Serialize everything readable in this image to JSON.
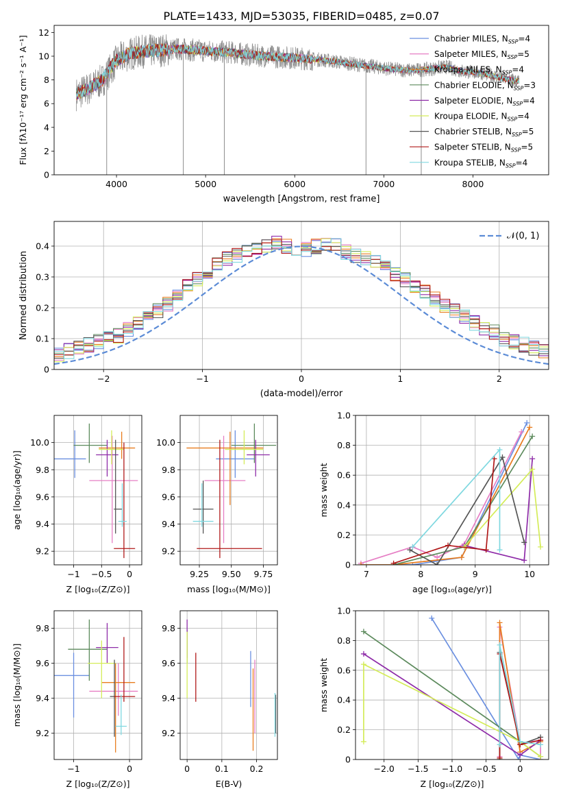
{
  "figure_title": "PLATE=1433, MJD=53035, FIBERID=0485, z=0.07",
  "colors": {
    "chabrier_miles": "#6a8fe0",
    "salpeter_miles": "#e67ec4",
    "kroupa_miles": "#e87c1e",
    "chabrier_elodie": "#5c8a5c",
    "salpeter_elodie": "#8e2ba8",
    "kroupa_elodie": "#d4ec58",
    "chabrier_stelib": "#555555",
    "salpeter_stelib": "#b01818",
    "kroupa_stelib": "#7fd8e0",
    "data": "#8c8c8c",
    "normal": "#5b8bd6"
  },
  "labels": {
    "spec_xlabel": "wavelength [Angstrom, rest frame]",
    "spec_ylabel": "Flux [fλ10⁻¹⁷ erg cm⁻² s⁻¹ A⁻¹]",
    "hist_xlabel": "(data-model)/error",
    "hist_ylabel": "Normed distribution",
    "hist_legend": "𝒩(0, 1)",
    "z_label": "Z [log₁₀(Z/Z⊙)]",
    "mass_label": "mass [log₁₀(M/M⊙)]",
    "age_label": "age  [log₁₀(age/yr)]",
    "mw_label": "mass weight",
    "ebv_label": "E(B-V)"
  },
  "legend": [
    {
      "key": "chabrier_miles",
      "text": "Chabrier MILES, N_SSP=4"
    },
    {
      "key": "salpeter_miles",
      "text": "Salpeter MILES, N_SSP=5"
    },
    {
      "key": "kroupa_miles",
      "text": "Kroupa MILES, N_SSP=4"
    },
    {
      "key": "chabrier_elodie",
      "text": "Chabrier ELODIE, N_SSP=3"
    },
    {
      "key": "salpeter_elodie",
      "text": "Salpeter ELODIE, N_SSP=4"
    },
    {
      "key": "kroupa_elodie",
      "text": "Kroupa ELODIE, N_SSP=4"
    },
    {
      "key": "chabrier_stelib",
      "text": "Chabrier STELIB, N_SSP=5"
    },
    {
      "key": "salpeter_stelib",
      "text": "Salpeter STELIB, N_SSP=5"
    },
    {
      "key": "kroupa_stelib",
      "text": "Kroupa STELIB, N_SSP=4"
    }
  ],
  "chart_data": [
    {
      "id": "spectrum",
      "type": "line",
      "title": "PLATE=1433, MJD=53035, FIBERID=0485, z=0.07",
      "xlabel": "wavelength [Angstrom, rest frame]",
      "xlim": [
        3300,
        8850
      ],
      "ylim": [
        0,
        12.6
      ],
      "xticks": [
        4000,
        5000,
        6000,
        7000,
        8000
      ],
      "yticks": [
        0,
        2,
        4,
        6,
        8,
        10,
        12
      ],
      "data_continuum": {
        "x": [
          3550,
          3700,
          3850,
          4000,
          4150,
          4300,
          4500,
          4700,
          4900,
          5100,
          5300,
          5500,
          5700,
          5900,
          6100,
          6300,
          6500,
          6700,
          6900,
          7100,
          7300,
          7500,
          7700,
          7900,
          8100,
          8300,
          8500
        ],
        "y": [
          6.8,
          7.3,
          8.0,
          9.6,
          10.2,
          10.4,
          10.5,
          10.6,
          10.5,
          10.4,
          10.3,
          10.1,
          10.0,
          9.9,
          9.8,
          9.7,
          9.5,
          9.3,
          9.1,
          8.9,
          8.8,
          8.9,
          9.1,
          8.7,
          8.6,
          8.2,
          7.9
        ]
      },
      "absorption_features": [
        {
          "x": 4750,
          "y": 0
        },
        {
          "x": 5210,
          "y": 0
        },
        {
          "x": 6800,
          "y": 0
        },
        {
          "x": 7420,
          "y": 0
        },
        {
          "x": 3890,
          "y": 0
        }
      ]
    },
    {
      "id": "residuals",
      "type": "bar",
      "xlabel": "(data-model)/error",
      "ylabel": "Normed distribution",
      "xlim": [
        -2.5,
        2.5
      ],
      "ylim": [
        0,
        0.48
      ],
      "xticks": [
        -2,
        -1,
        0,
        1,
        2
      ],
      "yticks": [
        0.0,
        0.1,
        0.2,
        0.3,
        0.4
      ],
      "bin_width": 0.1,
      "bin_values": [
        0.02,
        0.03,
        0.04,
        0.04,
        0.05,
        0.05,
        0.06,
        0.07,
        0.08,
        0.09,
        0.1,
        0.11,
        0.13,
        0.15,
        0.17,
        0.19,
        0.21,
        0.24,
        0.27,
        0.29,
        0.31,
        0.34,
        0.36,
        0.37,
        0.38,
        0.39,
        0.4,
        0.41,
        0.4,
        0.39,
        0.39,
        0.4,
        0.41,
        0.4,
        0.38,
        0.37,
        0.36,
        0.35,
        0.33,
        0.31,
        0.29,
        0.27,
        0.25,
        0.23,
        0.21,
        0.19,
        0.17,
        0.15,
        0.13,
        0.12,
        0.1,
        0.09,
        0.08,
        0.07,
        0.06,
        0.05,
        0.05,
        0.04,
        0.03,
        0.03
      ],
      "legend": [
        "𝒩(0, 1)"
      ]
    },
    {
      "id": "z_age",
      "type": "scatter",
      "xlim": [
        -1.35,
        0.22
      ],
      "ylim": [
        9.1,
        10.2
      ],
      "xticks": [
        -1,
        -0.5,
        0
      ],
      "yticks": [
        9.2,
        9.4,
        9.6,
        9.8,
        10.0
      ],
      "points": [
        {
          "key": "chabrier_miles",
          "x": -0.98,
          "y": 9.88,
          "xlo": -1.35,
          "xhi": -0.78,
          "ylo": 9.74,
          "yhi": 10.09
        },
        {
          "key": "salpeter_miles",
          "x": -0.31,
          "y": 9.72,
          "xlo": -0.72,
          "xhi": 0.15,
          "ylo": 9.26,
          "yhi": 10.05
        },
        {
          "key": "kroupa_miles",
          "x": -0.14,
          "y": 9.96,
          "xlo": -0.55,
          "xhi": 0.1,
          "ylo": 9.88,
          "yhi": 10.08
        },
        {
          "key": "chabrier_elodie",
          "x": -0.72,
          "y": 9.98,
          "xlo": -1.0,
          "xhi": -0.4,
          "ylo": 9.85,
          "yhi": 10.14
        },
        {
          "key": "salpeter_elodie",
          "x": -0.4,
          "y": 9.91,
          "xlo": -0.6,
          "xhi": -0.2,
          "ylo": 9.75,
          "yhi": 10.02
        },
        {
          "key": "kroupa_elodie",
          "x": -0.32,
          "y": 9.95,
          "xlo": -0.55,
          "xhi": -0.1,
          "ylo": 9.84,
          "yhi": 10.09
        },
        {
          "key": "chabrier_stelib",
          "x": -0.25,
          "y": 9.51,
          "xlo": -0.28,
          "xhi": -0.13,
          "ylo": 9.33,
          "yhi": 10.02
        },
        {
          "key": "salpeter_stelib",
          "x": -0.1,
          "y": 9.22,
          "xlo": -0.28,
          "xhi": 0.1,
          "ylo": 9.15,
          "yhi": 10.0
        },
        {
          "key": "kroupa_stelib",
          "x": -0.13,
          "y": 9.42,
          "xlo": -0.2,
          "xhi": -0.05,
          "ylo": 9.38,
          "yhi": 9.7
        }
      ]
    },
    {
      "id": "mass_age",
      "type": "scatter",
      "xlim": [
        9.1,
        9.86
      ],
      "ylim": [
        9.1,
        10.2
      ],
      "xticks": [
        9.25,
        9.5,
        9.75
      ],
      "yticks": [
        9.2,
        9.4,
        9.6,
        9.8,
        10.0
      ],
      "points": [
        {
          "key": "chabrier_miles",
          "x": 9.53,
          "y": 9.88,
          "xlo": 9.38,
          "xhi": 9.68,
          "ylo": 9.74,
          "yhi": 10.09
        },
        {
          "key": "salpeter_miles",
          "x": 9.44,
          "y": 9.72,
          "xlo": 9.29,
          "xhi": 9.61,
          "ylo": 9.26,
          "yhi": 10.05
        },
        {
          "key": "kroupa_miles",
          "x": 9.49,
          "y": 9.96,
          "xlo": 9.15,
          "xhi": 9.75,
          "ylo": 9.54,
          "yhi": 10.08
        },
        {
          "key": "chabrier_elodie",
          "x": 9.68,
          "y": 9.98,
          "xlo": 9.5,
          "xhi": 9.85,
          "ylo": 9.85,
          "yhi": 10.14
        },
        {
          "key": "salpeter_elodie",
          "x": 9.69,
          "y": 9.91,
          "xlo": 9.62,
          "xhi": 9.8,
          "ylo": 9.75,
          "yhi": 10.02
        },
        {
          "key": "kroupa_elodie",
          "x": 9.6,
          "y": 9.95,
          "xlo": 9.45,
          "xhi": 9.75,
          "ylo": 9.84,
          "yhi": 10.09
        },
        {
          "key": "chabrier_stelib",
          "x": 9.28,
          "y": 9.51,
          "xlo": 9.2,
          "xhi": 9.36,
          "ylo": 9.33,
          "yhi": 9.72
        },
        {
          "key": "salpeter_stelib",
          "x": 9.41,
          "y": 9.22,
          "xlo": 9.23,
          "xhi": 9.74,
          "ylo": 9.15,
          "yhi": 10.02
        },
        {
          "key": "kroupa_stelib",
          "x": 9.27,
          "y": 9.42,
          "xlo": 9.2,
          "xhi": 9.36,
          "ylo": 9.38,
          "yhi": 9.7
        }
      ]
    },
    {
      "id": "z_mass",
      "type": "scatter",
      "xlim": [
        -1.35,
        0.22
      ],
      "ylim": [
        9.05,
        9.9
      ],
      "xticks": [
        -1,
        0
      ],
      "yticks": [
        9.2,
        9.4,
        9.6,
        9.8
      ],
      "points": [
        {
          "key": "chabrier_miles",
          "x": -1.0,
          "y": 9.53,
          "xlo": -1.35,
          "xhi": -0.72,
          "ylo": 9.29,
          "yhi": 9.66
        },
        {
          "key": "salpeter_miles",
          "x": -0.2,
          "y": 9.44,
          "xlo": -0.72,
          "xhi": 0.15,
          "ylo": 9.3,
          "yhi": 9.6
        },
        {
          "key": "kroupa_miles",
          "x": -0.25,
          "y": 9.49,
          "xlo": -0.5,
          "xhi": 0.1,
          "ylo": 9.09,
          "yhi": 9.6
        },
        {
          "key": "chabrier_elodie",
          "x": -0.72,
          "y": 9.68,
          "xlo": -1.1,
          "xhi": -0.4,
          "ylo": 9.5,
          "yhi": 9.85
        },
        {
          "key": "salpeter_elodie",
          "x": -0.4,
          "y": 9.69,
          "xlo": -0.6,
          "xhi": -0.2,
          "ylo": 9.6,
          "yhi": 9.83
        },
        {
          "key": "kroupa_elodie",
          "x": -0.5,
          "y": 9.6,
          "xlo": -0.75,
          "xhi": -0.25,
          "ylo": 9.4,
          "yhi": 9.73
        },
        {
          "key": "chabrier_stelib",
          "x": -0.27,
          "y": 9.41,
          "xlo": -0.35,
          "xhi": -0.25,
          "ylo": 9.18,
          "yhi": 9.62
        },
        {
          "key": "salpeter_stelib",
          "x": -0.1,
          "y": 9.41,
          "xlo": -0.28,
          "xhi": 0.1,
          "ylo": 9.38,
          "yhi": 9.75
        },
        {
          "key": "kroupa_stelib",
          "x": -0.15,
          "y": 9.24,
          "xlo": -0.25,
          "xhi": -0.05,
          "ylo": 9.19,
          "yhi": 9.42
        }
      ]
    },
    {
      "id": "ebv_mass",
      "type": "scatter",
      "xlim": [
        -0.02,
        0.26
      ],
      "ylim": [
        9.05,
        9.9
      ],
      "xticks": [
        0.0,
        0.1,
        0.2
      ],
      "yticks": [
        9.2,
        9.4,
        9.6,
        9.8
      ],
      "points": [
        {
          "key": "chabrier_miles",
          "x": 0.183,
          "y": 9.53,
          "ylo": 9.35,
          "yhi": 9.67
        },
        {
          "key": "salpeter_miles",
          "x": 0.195,
          "y": 9.44,
          "ylo": 9.2,
          "yhi": 9.62
        },
        {
          "key": "kroupa_miles",
          "x": 0.19,
          "y": 9.49,
          "ylo": 9.1,
          "yhi": 9.57
        },
        {
          "key": "chabrier_elodie",
          "x": 0.0,
          "y": 9.68,
          "ylo": 9.6,
          "yhi": 9.79
        },
        {
          "key": "salpeter_elodie",
          "x": 0.0,
          "y": 9.69,
          "ylo": 9.63,
          "yhi": 9.85
        },
        {
          "key": "kroupa_elodie",
          "x": 0.0,
          "y": 9.6,
          "ylo": 9.4,
          "yhi": 9.78
        },
        {
          "key": "chabrier_stelib",
          "x": 0.255,
          "y": 9.3,
          "ylo": 9.2,
          "yhi": 9.42
        },
        {
          "key": "salpeter_stelib",
          "x": 0.025,
          "y": 9.5,
          "ylo": 9.38,
          "yhi": 9.66
        },
        {
          "key": "kroupa_stelib",
          "x": 0.253,
          "y": 9.3,
          "ylo": 9.18,
          "yhi": 9.43
        }
      ]
    },
    {
      "id": "age_weight",
      "type": "line",
      "xlim": [
        6.8,
        10.35
      ],
      "ylim": [
        0,
        1
      ],
      "xticks": [
        7,
        8,
        9,
        10
      ],
      "yticks": [
        0.0,
        0.2,
        0.4,
        0.6,
        0.8,
        1.0
      ],
      "series": [
        {
          "key": "chabrier_miles",
          "x": [
            7.5,
            7.85,
            8.75,
            9.95
          ],
          "y": [
            0.0,
            0.0,
            0.05,
            0.95
          ]
        },
        {
          "key": "salpeter_miles",
          "x": [
            6.9,
            7.85,
            8.3,
            8.8,
            9.85
          ],
          "y": [
            0.01,
            0.12,
            0.05,
            0.14,
            0.89
          ]
        },
        {
          "key": "kroupa_miles",
          "x": [
            6.9,
            7.5,
            8.75,
            10.0
          ],
          "y": [
            0.0,
            0.0,
            0.05,
            0.92
          ]
        },
        {
          "key": "chabrier_elodie",
          "x": [
            7.5,
            8.8,
            10.05
          ],
          "y": [
            0.0,
            0.12,
            0.86
          ]
        },
        {
          "key": "salpeter_elodie",
          "x": [
            8.8,
            9.9,
            10.05
          ],
          "y": [
            0.13,
            0.03,
            0.71
          ]
        },
        {
          "key": "kroupa_elodie",
          "x": [
            8.8,
            10.05,
            10.2
          ],
          "y": [
            0.12,
            0.64,
            0.12
          ]
        },
        {
          "key": "chabrier_stelib",
          "x": [
            7.8,
            8.3,
            9.5,
            9.9
          ],
          "y": [
            0.1,
            0.0,
            0.72,
            0.15
          ]
        },
        {
          "key": "salpeter_stelib",
          "x": [
            7.5,
            8.5,
            9.2,
            9.35
          ],
          "y": [
            0.01,
            0.13,
            0.1,
            0.71
          ]
        },
        {
          "key": "kroupa_stelib",
          "x": [
            7.85,
            9.45,
            9.45
          ],
          "y": [
            0.12,
            0.77,
            0.1
          ]
        }
      ]
    },
    {
      "id": "z_weight",
      "type": "line",
      "xlim": [
        -2.42,
        0.42
      ],
      "ylim": [
        0,
        1
      ],
      "xticks": [
        -2.0,
        -1.5,
        -1.0,
        -0.5,
        0.0
      ],
      "yticks": [
        0.0,
        0.2,
        0.4,
        0.6,
        0.8,
        1.0
      ],
      "series": [
        {
          "key": "chabrier_miles",
          "x": [
            -1.3,
            -0.02,
            0.0,
            0.3
          ],
          "y": [
            0.95,
            0.0,
            0.03,
            0.0
          ]
        },
        {
          "key": "salpeter_miles",
          "x": [
            -0.3,
            -0.3,
            0.0,
            0.3,
            0.3
          ],
          "y": [
            0.02,
            0.89,
            0.11,
            0.13,
            0.0
          ]
        },
        {
          "key": "kroupa_miles",
          "x": [
            -0.3,
            -0.3,
            0.0,
            0.3
          ],
          "y": [
            0.0,
            0.92,
            0.05,
            0.12
          ]
        },
        {
          "key": "chabrier_elodie",
          "x": [
            -2.3,
            0.0,
            0.3
          ],
          "y": [
            0.86,
            0.12,
            0.02
          ]
        },
        {
          "key": "salpeter_elodie",
          "x": [
            -2.3,
            0.0,
            0.3
          ],
          "y": [
            0.71,
            0.03,
            0.13
          ]
        },
        {
          "key": "kroupa_elodie",
          "x": [
            -2.3,
            -2.3,
            0.0,
            0.3
          ],
          "y": [
            0.12,
            0.64,
            0.12,
            0.02
          ]
        },
        {
          "key": "chabrier_stelib",
          "x": [
            -0.3,
            -0.3,
            0.0,
            0.3
          ],
          "y": [
            0.0,
            0.72,
            0.1,
            0.15
          ]
        },
        {
          "key": "salpeter_stelib",
          "x": [
            -0.3,
            -0.3,
            0.0,
            0.3
          ],
          "y": [
            0.01,
            0.71,
            0.1,
            0.13
          ]
        },
        {
          "key": "kroupa_stelib",
          "x": [
            -0.3,
            -0.3,
            0.0,
            0.3
          ],
          "y": [
            0.1,
            0.77,
            0.12,
            0.1
          ]
        }
      ]
    }
  ]
}
